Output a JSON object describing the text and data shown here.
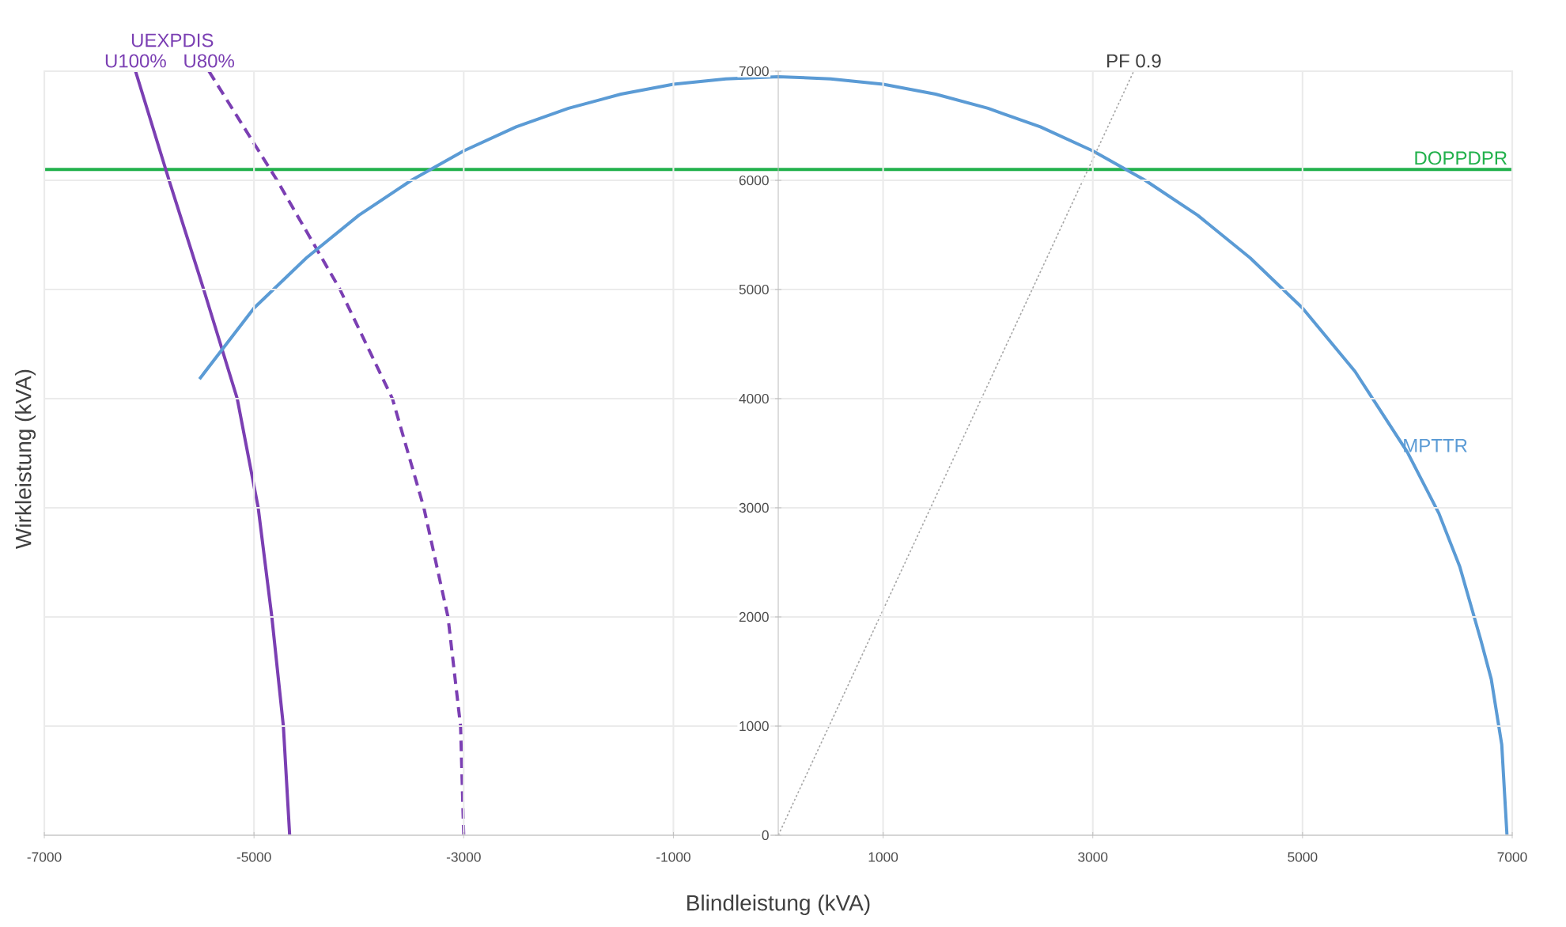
{
  "chart_data": {
    "type": "line",
    "xlabel": "Blindleistung (kVA)",
    "ylabel": "Wirkleistung (kVA)",
    "xlim": [
      -7000,
      7000
    ],
    "ylim": [
      0,
      7000
    ],
    "xticks": [
      -7000,
      -5000,
      -3000,
      -1000,
      1000,
      3000,
      5000,
      7000
    ],
    "yticks": [
      0,
      1000,
      2000,
      3000,
      4000,
      5000,
      6000,
      7000
    ],
    "grid": true,
    "marker": "none",
    "annotations": [
      "UEXPDIS"
    ],
    "ref_lines": [
      {
        "axis": "y",
        "value": 6100,
        "label": "DOPPDPR",
        "color": "#22b14c"
      }
    ],
    "series": [
      {
        "name": "U100%",
        "color": "#7b3fb3",
        "line_style": "solid",
        "x": [
          -6130,
          -5810,
          -5480,
          -5160,
          -4960,
          -4830,
          -4720,
          -4660
        ],
        "values": [
          7000,
          6000,
          5000,
          4000,
          3000,
          2000,
          1000,
          0
        ]
      },
      {
        "name": "U80%",
        "color": "#7b3fb3",
        "line_style": "dashed",
        "x": [
          -5430,
          -4780,
          -4180,
          -3680,
          -3380,
          -3150,
          -3030,
          -3000
        ],
        "values": [
          7000,
          6000,
          5000,
          4000,
          3000,
          2000,
          1000,
          0
        ]
      },
      {
        "name": "MPTTR",
        "color": "#5b9bd5",
        "line_style": "solid",
        "x": [
          -5520,
          -5000,
          -4500,
          -4000,
          -3500,
          -3000,
          -2500,
          -2000,
          -1500,
          -1000,
          -500,
          0,
          500,
          1000,
          1500,
          2000,
          2500,
          3000,
          3500,
          4000,
          4500,
          5000,
          5500,
          6000,
          6300,
          6500,
          6700,
          6800,
          6900,
          6950
        ],
        "values": [
          4180,
          4830,
          5290,
          5680,
          6000,
          6270,
          6490,
          6660,
          6790,
          6880,
          6930,
          6950,
          6930,
          6880,
          6790,
          6660,
          6490,
          6270,
          6000,
          5680,
          5290,
          4830,
          4250,
          3510,
          2950,
          2460,
          1790,
          1430,
          830,
          0
        ]
      },
      {
        "name": "PF 0.9",
        "color": "#a6a6a6",
        "line_style": "dotted",
        "x": [
          0,
          3390
        ],
        "values": [
          0,
          7000
        ]
      }
    ]
  }
}
